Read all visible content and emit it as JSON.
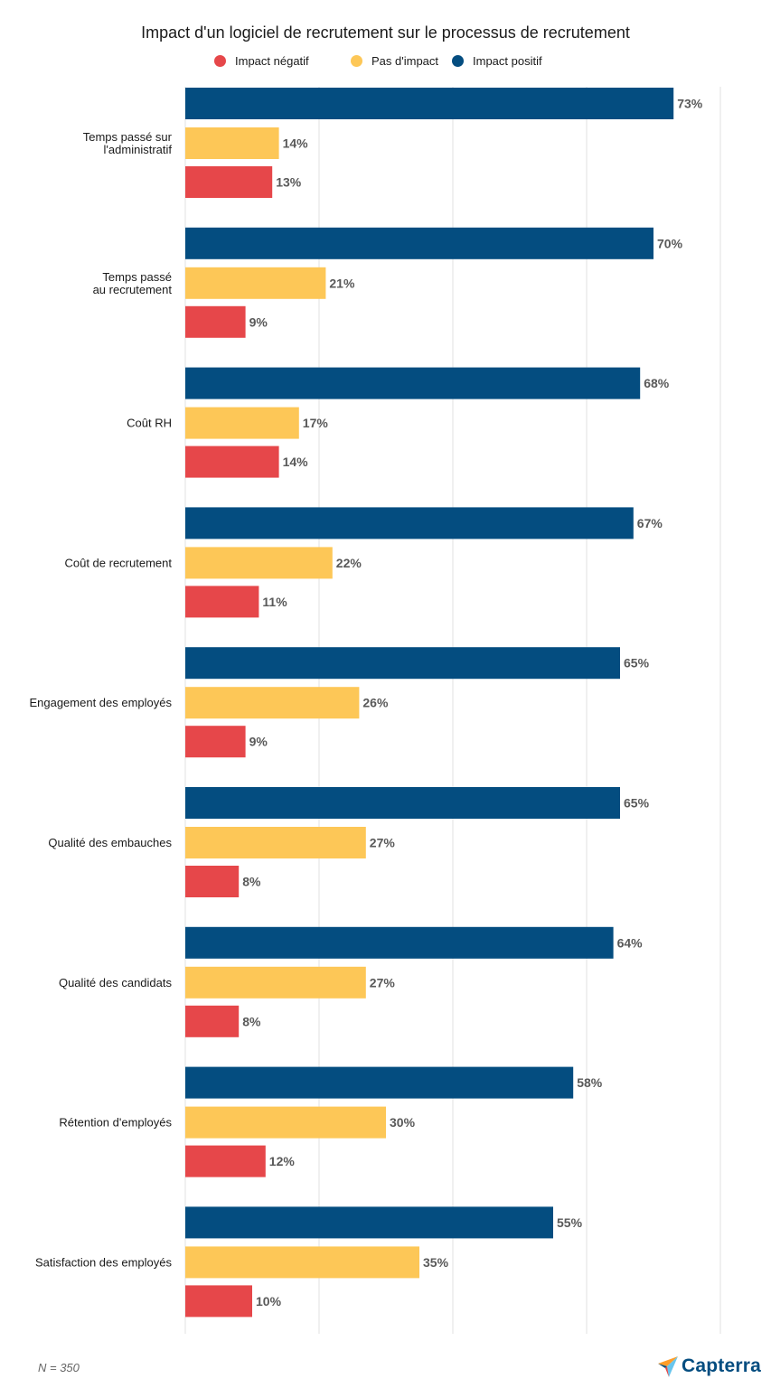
{
  "chart_data": {
    "type": "bar",
    "orientation": "horizontal",
    "title": "Impact d'un logiciel de recrutement sur le processus de recrutement",
    "legend_position": "top",
    "grid": true,
    "xlim": [
      0,
      80
    ],
    "categories": [
      [
        "Temps passé sur",
        "l'administratif"
      ],
      [
        "Temps passé",
        "au recrutement"
      ],
      [
        "Coût RH"
      ],
      [
        "Coût de recrutement"
      ],
      [
        "Engagement des employés"
      ],
      [
        "Qualité des embauches"
      ],
      [
        "Qualité des candidats"
      ],
      [
        "Rétention d'employés"
      ],
      [
        "Satisfaction des employés"
      ]
    ],
    "series": [
      {
        "name": "Impact positif",
        "color": "#044d80",
        "values": [
          73,
          70,
          68,
          67,
          65,
          65,
          64,
          58,
          55
        ]
      },
      {
        "name": "Pas d'impact",
        "color": "#fdc757",
        "values": [
          14,
          21,
          17,
          22,
          26,
          27,
          27,
          30,
          35
        ]
      },
      {
        "name": "Impact négatif",
        "color": "#e6474a",
        "values": [
          13,
          9,
          14,
          11,
          9,
          8,
          8,
          12,
          10
        ]
      }
    ],
    "legend_order": [
      "Impact négatif",
      "Pas d'impact",
      "Impact positif"
    ],
    "value_suffix": "%"
  },
  "footnote": "N = 350",
  "brand": {
    "name": "Capterra",
    "icon": "capterra-logo-icon"
  }
}
